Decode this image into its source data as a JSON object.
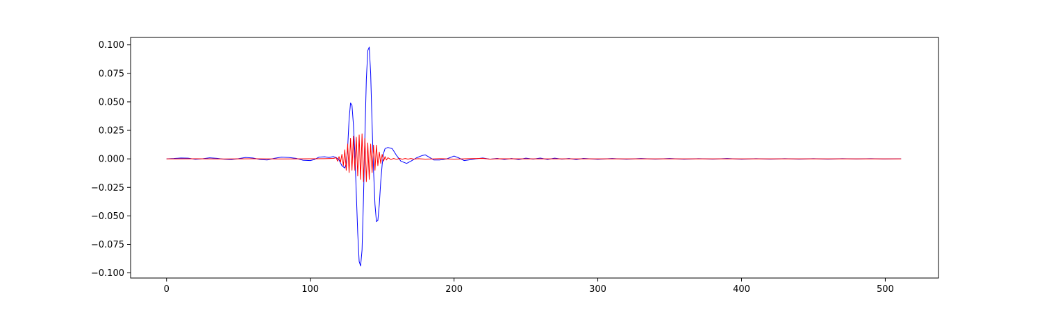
{
  "chart_data": {
    "type": "line",
    "title": "",
    "xlabel": "",
    "ylabel": "",
    "xlim": [
      -25,
      537
    ],
    "ylim": [
      -0.1045,
      0.1065
    ],
    "grid": false,
    "legend": "none",
    "x_ticks": [
      {
        "value": 0,
        "label": "0"
      },
      {
        "value": 100,
        "label": "100"
      },
      {
        "value": 200,
        "label": "200"
      },
      {
        "value": 300,
        "label": "300"
      },
      {
        "value": 400,
        "label": "400"
      },
      {
        "value": 500,
        "label": "500"
      }
    ],
    "y_ticks": [
      {
        "value": 0.1,
        "label": "0.100"
      },
      {
        "value": 0.075,
        "label": "0.075"
      },
      {
        "value": 0.05,
        "label": "0.050"
      },
      {
        "value": 0.025,
        "label": "0.025"
      },
      {
        "value": 0,
        "label": "0.000"
      },
      {
        "value": -0.025,
        "label": "−0.025"
      },
      {
        "value": -0.05,
        "label": "−0.050"
      },
      {
        "value": -0.075,
        "label": "−0.075"
      },
      {
        "value": -0.1,
        "label": "−0.100"
      }
    ],
    "series": [
      {
        "color": "#0000ff",
        "points": [
          [
            0,
            0.0
          ],
          [
            5,
            0.0003
          ],
          [
            10,
            0.0008
          ],
          [
            15,
            0.0006
          ],
          [
            20,
            -0.0004
          ],
          [
            25,
            0.0001
          ],
          [
            30,
            0.0009
          ],
          [
            35,
            0.0005
          ],
          [
            40,
            -0.0003
          ],
          [
            45,
            -0.0006
          ],
          [
            50,
            0.0002
          ],
          [
            55,
            0.0012
          ],
          [
            60,
            0.0008
          ],
          [
            65,
            -0.0005
          ],
          [
            70,
            -0.001
          ],
          [
            75,
            0.0005
          ],
          [
            80,
            0.0015
          ],
          [
            85,
            0.0012
          ],
          [
            90,
            0.0005
          ],
          [
            95,
            -0.0012
          ],
          [
            100,
            -0.0015
          ],
          [
            103,
            -0.0005
          ],
          [
            106,
            0.0015
          ],
          [
            110,
            0.0018
          ],
          [
            113,
            0.0012
          ],
          [
            116,
            0.002
          ],
          [
            118,
            0.0012
          ],
          [
            120,
            -0.001
          ],
          [
            122,
            -0.006
          ],
          [
            124,
            -0.008
          ],
          [
            125,
            -0.004
          ],
          [
            126,
            0.01
          ],
          [
            127,
            0.035
          ],
          [
            128,
            0.049
          ],
          [
            129,
            0.047
          ],
          [
            130,
            0.03
          ],
          [
            131,
            0.005
          ],
          [
            132,
            -0.03
          ],
          [
            133,
            -0.065
          ],
          [
            134,
            -0.09
          ],
          [
            135,
            -0.094
          ],
          [
            136,
            -0.08
          ],
          [
            137,
            -0.035
          ],
          [
            138,
            0.02
          ],
          [
            139,
            0.07
          ],
          [
            140,
            0.095
          ],
          [
            141,
            0.098
          ],
          [
            142,
            0.075
          ],
          [
            143,
            0.03
          ],
          [
            144,
            -0.01
          ],
          [
            145,
            -0.04
          ],
          [
            146,
            -0.055
          ],
          [
            147,
            -0.054
          ],
          [
            148,
            -0.04
          ],
          [
            149,
            -0.02
          ],
          [
            150,
            -0.005
          ],
          [
            151,
            0.005
          ],
          [
            152,
            0.009
          ],
          [
            154,
            0.01
          ],
          [
            157,
            0.009
          ],
          [
            160,
            0.003
          ],
          [
            163,
            -0.002
          ],
          [
            167,
            -0.004
          ],
          [
            170,
            -0.002
          ],
          [
            174,
            0.001
          ],
          [
            178,
            0.003
          ],
          [
            180,
            0.0035
          ],
          [
            182,
            0.002
          ],
          [
            186,
            -0.001
          ],
          [
            190,
            -0.001
          ],
          [
            195,
            0.0
          ],
          [
            200,
            0.0025
          ],
          [
            203,
            0.001
          ],
          [
            207,
            -0.0015
          ],
          [
            210,
            -0.001
          ],
          [
            215,
            0.0
          ],
          [
            220,
            0.0008
          ],
          [
            225,
            -0.0003
          ],
          [
            230,
            0.0004
          ],
          [
            235,
            -0.0005
          ],
          [
            240,
            0.0003
          ],
          [
            245,
            -0.0006
          ],
          [
            250,
            0.0006
          ],
          [
            255,
            -0.0002
          ],
          [
            260,
            0.0007
          ],
          [
            265,
            -0.0005
          ],
          [
            270,
            0.0006
          ],
          [
            275,
            -0.0002
          ],
          [
            280,
            0.0003
          ],
          [
            285,
            -0.0006
          ],
          [
            290,
            0.0004
          ],
          [
            295,
            0.0
          ],
          [
            300,
            -0.0004
          ],
          [
            310,
            0.0003
          ],
          [
            320,
            -0.0003
          ],
          [
            330,
            0.0003
          ],
          [
            340,
            -0.0002
          ],
          [
            350,
            0.0003
          ],
          [
            360,
            -0.0003
          ],
          [
            370,
            0.0002
          ],
          [
            380,
            -0.0002
          ],
          [
            390,
            0.0003
          ],
          [
            400,
            -0.0003
          ],
          [
            410,
            0.0002
          ],
          [
            420,
            -0.0002
          ],
          [
            430,
            0.0002
          ],
          [
            440,
            -0.0002
          ],
          [
            450,
            0.0002
          ],
          [
            460,
            -0.0002
          ],
          [
            470,
            0.0002
          ],
          [
            480,
            -0.0001
          ],
          [
            490,
            0.0002
          ],
          [
            500,
            -0.0001
          ],
          [
            511,
            0.0001
          ]
        ]
      },
      {
        "color": "#ff0000",
        "points": [
          [
            0,
            0.0
          ],
          [
            20,
            0.0001
          ],
          [
            40,
            -0.0001
          ],
          [
            60,
            0.0001
          ],
          [
            80,
            -0.0001
          ],
          [
            100,
            0.0001
          ],
          [
            110,
            0.0002
          ],
          [
            116,
            0.0004
          ],
          [
            118,
            0.001
          ],
          [
            119,
            -0.002
          ],
          [
            120,
            0.002
          ],
          [
            121,
            -0.003
          ],
          [
            122,
            0.004
          ],
          [
            123,
            -0.006
          ],
          [
            124,
            0.008
          ],
          [
            125,
            -0.01
          ],
          [
            126,
            0.013
          ],
          [
            127,
            -0.012
          ],
          [
            128,
            0.018
          ],
          [
            129,
            -0.01
          ],
          [
            130,
            0.02
          ],
          [
            131,
            -0.01
          ],
          [
            132,
            0.019
          ],
          [
            133,
            -0.015
          ],
          [
            134,
            0.021
          ],
          [
            135,
            -0.018
          ],
          [
            136,
            0.022
          ],
          [
            137,
            -0.02
          ],
          [
            138,
            0.018
          ],
          [
            139,
            -0.02
          ],
          [
            140,
            0.014
          ],
          [
            141,
            -0.018
          ],
          [
            142,
            0.013
          ],
          [
            143,
            -0.012
          ],
          [
            144,
            0.012
          ],
          [
            145,
            -0.01
          ],
          [
            146,
            0.012
          ],
          [
            147,
            -0.006
          ],
          [
            148,
            0.006
          ],
          [
            149,
            -0.004
          ],
          [
            150,
            0.004
          ],
          [
            151,
            -0.002
          ],
          [
            152,
            0.002
          ],
          [
            153,
            -0.001
          ],
          [
            154,
            0.001
          ],
          [
            156,
            -0.0005
          ],
          [
            158,
            0.0003
          ],
          [
            160,
            -0.0004
          ],
          [
            162,
            0.0004
          ],
          [
            164,
            -0.0003
          ],
          [
            166,
            0.0003
          ],
          [
            168,
            -0.0002
          ],
          [
            170,
            0.0003
          ],
          [
            172,
            -0.0002
          ],
          [
            175,
            0.0002
          ],
          [
            180,
            -0.0002
          ],
          [
            190,
            0.0002
          ],
          [
            200,
            -0.0002
          ],
          [
            210,
            0.0002
          ],
          [
            220,
            0.0004
          ],
          [
            225,
            -0.0002
          ],
          [
            230,
            0.0001
          ],
          [
            250,
            0.0
          ],
          [
            300,
            0.0
          ],
          [
            400,
            0.0
          ],
          [
            511,
            0.0
          ]
        ]
      }
    ]
  }
}
